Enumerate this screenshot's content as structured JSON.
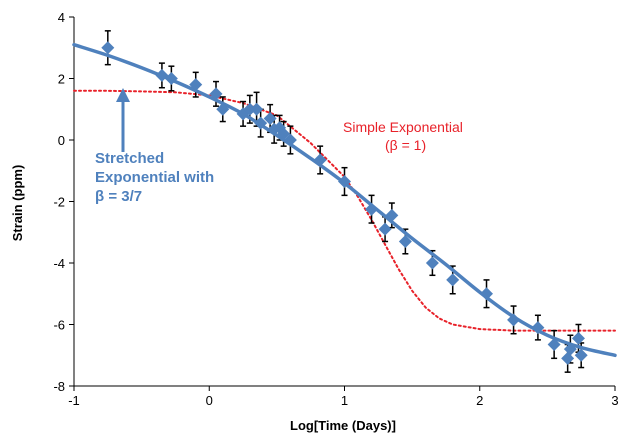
{
  "chart_data": {
    "type": "scatter",
    "xlabel": "Log[Time (Days)]",
    "ylabel": "Strain (ppm)",
    "xlim": [
      -1,
      3
    ],
    "ylim": [
      -8,
      4
    ],
    "x_ticks": [
      "-1",
      "0",
      "1",
      "2",
      "3"
    ],
    "y_ticks": [
      "4",
      "2",
      "0",
      "-2",
      "-4",
      "-6",
      "-8"
    ],
    "grid": false,
    "legend": "none",
    "series": [
      {
        "kind": "points_with_error_bars",
        "color": "#4f81bd",
        "marker": "diamond",
        "error_color": "#000000",
        "x": [
          -0.75,
          -0.35,
          -0.28,
          -0.1,
          0.05,
          0.1,
          0.25,
          0.3,
          0.35,
          0.38,
          0.45,
          0.48,
          0.52,
          0.55,
          0.6,
          0.82,
          1.0,
          1.2,
          1.3,
          1.35,
          1.45,
          1.65,
          1.8,
          2.05,
          2.25,
          2.43,
          2.55,
          2.65,
          2.67,
          2.73,
          2.75
        ],
        "y": [
          3.0,
          2.1,
          2.0,
          1.8,
          1.5,
          1.0,
          0.85,
          1.0,
          1.0,
          0.55,
          0.7,
          0.35,
          0.4,
          0.2,
          0.0,
          -0.65,
          -1.35,
          -2.25,
          -2.9,
          -2.45,
          -3.3,
          -4.0,
          -4.55,
          -5.0,
          -5.85,
          -6.1,
          -6.65,
          -7.1,
          -6.8,
          -6.45,
          -7.0
        ],
        "err": [
          0.55,
          0.4,
          0.4,
          0.4,
          0.4,
          0.4,
          0.4,
          0.45,
          0.55,
          0.45,
          0.45,
          0.45,
          0.4,
          0.4,
          0.45,
          0.45,
          0.45,
          0.45,
          0.4,
          0.4,
          0.4,
          0.4,
          0.45,
          0.45,
          0.45,
          0.4,
          0.45,
          0.45,
          0.45,
          0.45,
          0.4
        ]
      },
      {
        "kind": "line",
        "color": "#4f81bd",
        "style": "solid",
        "x": [
          -1.0,
          -0.75,
          -0.5,
          -0.25,
          0.0,
          0.25,
          0.5,
          0.75,
          1.0,
          1.25,
          1.5,
          1.75,
          2.0,
          2.25,
          2.5,
          2.75,
          3.0
        ],
        "y": [
          3.1,
          2.75,
          2.35,
          1.9,
          1.4,
          0.85,
          0.15,
          -0.6,
          -1.4,
          -2.3,
          -3.2,
          -4.05,
          -4.95,
          -5.75,
          -6.35,
          -6.75,
          -7.0
        ]
      },
      {
        "kind": "line",
        "color": "#e8222a",
        "style": "dotted",
        "x": [
          -1.0,
          -0.75,
          -0.5,
          -0.25,
          0.0,
          0.25,
          0.5,
          0.75,
          1.0,
          1.1,
          1.2,
          1.3,
          1.4,
          1.5,
          1.6,
          1.7,
          1.8,
          2.0,
          2.25,
          2.5,
          2.75,
          3.0
        ],
        "y": [
          1.6,
          1.6,
          1.58,
          1.55,
          1.45,
          1.2,
          0.8,
          -0.1,
          -1.2,
          -1.85,
          -2.6,
          -3.4,
          -4.2,
          -4.9,
          -5.45,
          -5.8,
          -6.0,
          -6.15,
          -6.2,
          -6.2,
          -6.2,
          -6.2
        ]
      }
    ],
    "annotations": {
      "stretched_lines": [
        "Stretched",
        "Exponential with",
        "β = 3/7"
      ],
      "simple_lines": [
        "Simple Exponential",
        "(β = 1)"
      ]
    }
  }
}
